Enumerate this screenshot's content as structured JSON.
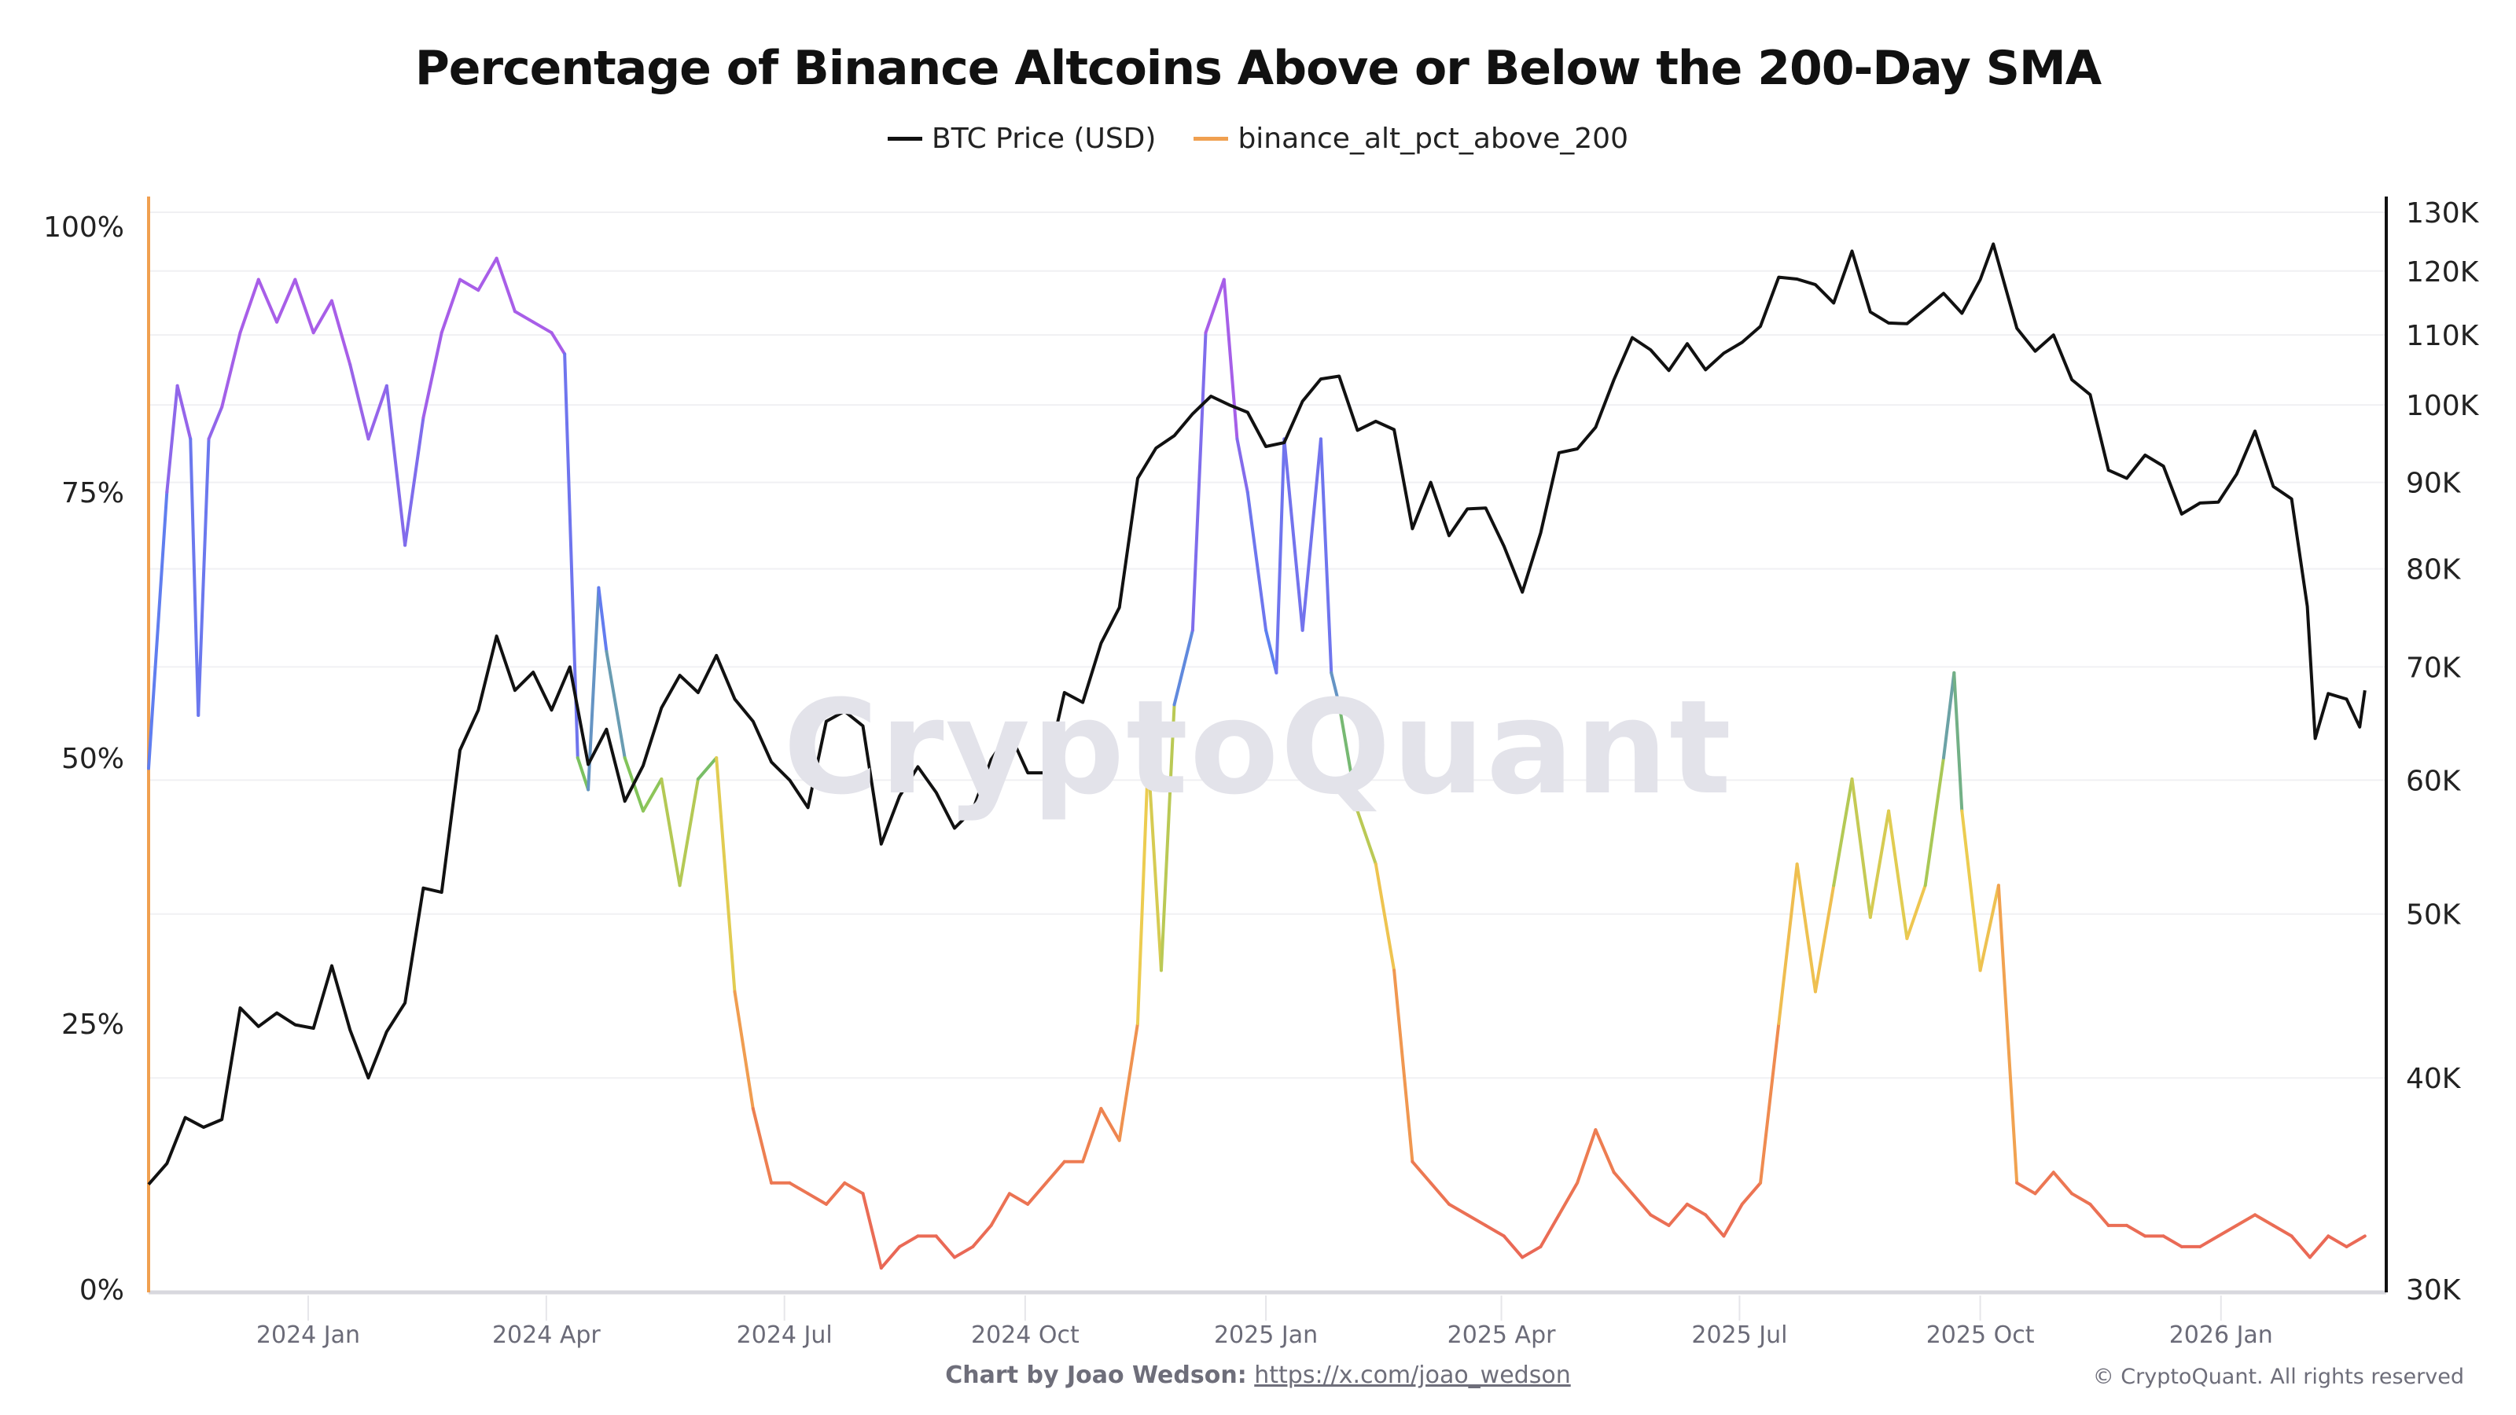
{
  "chart_data": {
    "type": "line",
    "title": "Percentage of Binance Altcoins Above or Below the 200-Day SMA",
    "legend_position": "top-center",
    "grid": true,
    "watermark": "CryptoQuant",
    "x_ticks": [
      {
        "date": "2024-01-01",
        "label": "2024 Jan"
      },
      {
        "date": "2024-04-01",
        "label": "2024 Apr"
      },
      {
        "date": "2024-07-01",
        "label": "2024 Jul"
      },
      {
        "date": "2024-10-01",
        "label": "2024 Oct"
      },
      {
        "date": "2025-01-01",
        "label": "2025 Jan"
      },
      {
        "date": "2025-04-01",
        "label": "2025 Apr"
      },
      {
        "date": "2025-07-01",
        "label": "2025 Jul"
      },
      {
        "date": "2025-10-01",
        "label": "2025 Oct"
      },
      {
        "date": "2026-01-01",
        "label": "2026 Jan"
      }
    ],
    "left_axis": {
      "scale": "linear",
      "range": [
        0,
        100
      ],
      "ticks": [
        {
          "v": 0,
          "label": "0%"
        },
        {
          "v": 25,
          "label": "25%"
        },
        {
          "v": 50,
          "label": "50%"
        },
        {
          "v": 75,
          "label": "75%"
        },
        {
          "v": 100,
          "label": "100%"
        }
      ]
    },
    "right_axis": {
      "scale": "log",
      "range": [
        30000,
        130000
      ],
      "ticks": [
        {
          "v": 30000,
          "label": "30K"
        },
        {
          "v": 40000,
          "label": "40K"
        },
        {
          "v": 50000,
          "label": "50K"
        },
        {
          "v": 60000,
          "label": "60K"
        },
        {
          "v": 70000,
          "label": "70K"
        },
        {
          "v": 80000,
          "label": "80K"
        },
        {
          "v": 90000,
          "label": "90K"
        },
        {
          "v": 100000,
          "label": "100K"
        },
        {
          "v": 110000,
          "label": "110K"
        },
        {
          "v": 120000,
          "label": "120K"
        },
        {
          "v": 130000,
          "label": "130K"
        }
      ]
    },
    "series": [
      {
        "name": "BTC Price (USD)",
        "axis": "right",
        "color": "#111111",
        "points": [
          [
            "2023-11-01",
            34600
          ],
          [
            "2023-11-08",
            35600
          ],
          [
            "2023-11-15",
            37900
          ],
          [
            "2023-11-22",
            37400
          ],
          [
            "2023-11-29",
            37800
          ],
          [
            "2023-12-06",
            44000
          ],
          [
            "2023-12-13",
            42900
          ],
          [
            "2023-12-20",
            43700
          ],
          [
            "2023-12-27",
            43000
          ],
          [
            "2024-01-03",
            42800
          ],
          [
            "2024-01-10",
            46600
          ],
          [
            "2024-01-17",
            42700
          ],
          [
            "2024-01-24",
            40000
          ],
          [
            "2024-01-31",
            42600
          ],
          [
            "2024-02-07",
            44300
          ],
          [
            "2024-02-14",
            51800
          ],
          [
            "2024-02-21",
            51500
          ],
          [
            "2024-02-28",
            62500
          ],
          [
            "2024-03-06",
            66000
          ],
          [
            "2024-03-13",
            73000
          ],
          [
            "2024-03-20",
            67800
          ],
          [
            "2024-03-27",
            69500
          ],
          [
            "2024-04-03",
            66000
          ],
          [
            "2024-04-10",
            70000
          ],
          [
            "2024-04-17",
            61300
          ],
          [
            "2024-04-24",
            64300
          ],
          [
            "2024-05-01",
            58300
          ],
          [
            "2024-05-08",
            61200
          ],
          [
            "2024-05-15",
            66200
          ],
          [
            "2024-05-22",
            69200
          ],
          [
            "2024-05-29",
            67600
          ],
          [
            "2024-06-05",
            71100
          ],
          [
            "2024-06-12",
            67000
          ],
          [
            "2024-06-19",
            65000
          ],
          [
            "2024-06-26",
            61500
          ],
          [
            "2024-07-03",
            60000
          ],
          [
            "2024-07-10",
            57800
          ],
          [
            "2024-07-17",
            65000
          ],
          [
            "2024-07-24",
            65900
          ],
          [
            "2024-07-31",
            64600
          ],
          [
            "2024-08-07",
            55000
          ],
          [
            "2024-08-14",
            58700
          ],
          [
            "2024-08-21",
            61100
          ],
          [
            "2024-08-28",
            59000
          ],
          [
            "2024-09-04",
            56200
          ],
          [
            "2024-09-11",
            57600
          ],
          [
            "2024-09-18",
            61700
          ],
          [
            "2024-09-25",
            64000
          ],
          [
            "2024-10-02",
            60600
          ],
          [
            "2024-10-09",
            60600
          ],
          [
            "2024-10-16",
            67600
          ],
          [
            "2024-10-23",
            66700
          ],
          [
            "2024-10-30",
            72300
          ],
          [
            "2024-11-06",
            75900
          ],
          [
            "2024-11-13",
            90500
          ],
          [
            "2024-11-20",
            94300
          ],
          [
            "2024-11-27",
            95900
          ],
          [
            "2024-12-04",
            98800
          ],
          [
            "2024-12-11",
            101200
          ],
          [
            "2024-12-18",
            100000
          ],
          [
            "2024-12-25",
            99000
          ],
          [
            "2025-01-01",
            94500
          ],
          [
            "2025-01-08",
            95000
          ],
          [
            "2025-01-15",
            100500
          ],
          [
            "2025-01-22",
            103600
          ],
          [
            "2025-01-29",
            104000
          ],
          [
            "2025-02-05",
            96600
          ],
          [
            "2025-02-12",
            97800
          ],
          [
            "2025-02-19",
            96700
          ],
          [
            "2025-02-26",
            84500
          ],
          [
            "2025-03-05",
            90000
          ],
          [
            "2025-03-12",
            83700
          ],
          [
            "2025-03-19",
            86800
          ],
          [
            "2025-03-26",
            86900
          ],
          [
            "2025-04-02",
            82500
          ],
          [
            "2025-04-09",
            77500
          ],
          [
            "2025-04-16",
            84000
          ],
          [
            "2025-04-23",
            93700
          ],
          [
            "2025-04-30",
            94200
          ],
          [
            "2025-05-07",
            97000
          ],
          [
            "2025-05-14",
            103500
          ],
          [
            "2025-05-21",
            109600
          ],
          [
            "2025-05-28",
            107800
          ],
          [
            "2025-06-04",
            104800
          ],
          [
            "2025-06-11",
            108700
          ],
          [
            "2025-06-18",
            104900
          ],
          [
            "2025-06-25",
            107300
          ],
          [
            "2025-07-02",
            108900
          ],
          [
            "2025-07-09",
            111300
          ],
          [
            "2025-07-16",
            119000
          ],
          [
            "2025-07-23",
            118700
          ],
          [
            "2025-07-30",
            117800
          ],
          [
            "2025-08-06",
            114900
          ],
          [
            "2025-08-13",
            123300
          ],
          [
            "2025-08-20",
            113500
          ],
          [
            "2025-08-27",
            111800
          ],
          [
            "2025-09-03",
            111700
          ],
          [
            "2025-09-10",
            114000
          ],
          [
            "2025-09-17",
            116400
          ],
          [
            "2025-09-24",
            113300
          ],
          [
            "2025-10-01",
            118600
          ],
          [
            "2025-10-06",
            124500
          ],
          [
            "2025-10-15",
            111000
          ],
          [
            "2025-10-22",
            107600
          ],
          [
            "2025-10-29",
            110000
          ],
          [
            "2025-11-05",
            103500
          ],
          [
            "2025-11-12",
            101400
          ],
          [
            "2025-11-19",
            91500
          ],
          [
            "2025-11-26",
            90500
          ],
          [
            "2025-12-03",
            93400
          ],
          [
            "2025-12-10",
            92000
          ],
          [
            "2025-12-17",
            86200
          ],
          [
            "2025-12-24",
            87500
          ],
          [
            "2025-12-31",
            87600
          ],
          [
            "2026-01-07",
            91000
          ],
          [
            "2026-01-14",
            96500
          ],
          [
            "2026-01-21",
            89500
          ],
          [
            "2026-01-28",
            88000
          ],
          [
            "2026-02-03",
            76000
          ],
          [
            "2026-02-06",
            63500
          ],
          [
            "2026-02-11",
            67500
          ],
          [
            "2026-02-18",
            67000
          ],
          [
            "2026-02-23",
            64500
          ],
          [
            "2026-02-25",
            67800
          ]
        ]
      },
      {
        "name": "binance_alt_pct_above_200",
        "axis": "left",
        "color": "#f0a050",
        "points": [
          [
            "2023-11-01",
            49
          ],
          [
            "2023-11-08",
            75
          ],
          [
            "2023-11-12",
            85
          ],
          [
            "2023-11-17",
            80
          ],
          [
            "2023-11-20",
            54
          ],
          [
            "2023-11-24",
            80
          ],
          [
            "2023-11-29",
            83
          ],
          [
            "2023-12-06",
            90
          ],
          [
            "2023-12-13",
            95
          ],
          [
            "2023-12-20",
            91
          ],
          [
            "2023-12-27",
            95
          ],
          [
            "2024-01-03",
            90
          ],
          [
            "2024-01-10",
            93
          ],
          [
            "2024-01-17",
            87
          ],
          [
            "2024-01-24",
            80
          ],
          [
            "2024-01-31",
            85
          ],
          [
            "2024-02-07",
            70
          ],
          [
            "2024-02-14",
            82
          ],
          [
            "2024-02-21",
            90
          ],
          [
            "2024-02-28",
            95
          ],
          [
            "2024-03-06",
            94
          ],
          [
            "2024-03-13",
            97
          ],
          [
            "2024-03-20",
            92
          ],
          [
            "2024-03-27",
            91
          ],
          [
            "2024-04-03",
            90
          ],
          [
            "2024-04-08",
            88
          ],
          [
            "2024-04-13",
            50
          ],
          [
            "2024-04-17",
            47
          ],
          [
            "2024-04-21",
            66
          ],
          [
            "2024-04-24",
            60
          ],
          [
            "2024-05-01",
            50
          ],
          [
            "2024-05-08",
            45
          ],
          [
            "2024-05-15",
            48
          ],
          [
            "2024-05-22",
            38
          ],
          [
            "2024-05-29",
            48
          ],
          [
            "2024-06-05",
            50
          ],
          [
            "2024-06-12",
            28
          ],
          [
            "2024-06-19",
            17
          ],
          [
            "2024-06-26",
            10
          ],
          [
            "2024-07-03",
            10
          ],
          [
            "2024-07-10",
            9
          ],
          [
            "2024-07-17",
            8
          ],
          [
            "2024-07-24",
            10
          ],
          [
            "2024-07-31",
            9
          ],
          [
            "2024-08-07",
            2
          ],
          [
            "2024-08-14",
            4
          ],
          [
            "2024-08-21",
            5
          ],
          [
            "2024-08-28",
            5
          ],
          [
            "2024-09-04",
            3
          ],
          [
            "2024-09-11",
            4
          ],
          [
            "2024-09-18",
            6
          ],
          [
            "2024-09-25",
            9
          ],
          [
            "2024-10-02",
            8
          ],
          [
            "2024-10-09",
            10
          ],
          [
            "2024-10-16",
            12
          ],
          [
            "2024-10-23",
            12
          ],
          [
            "2024-10-30",
            17
          ],
          [
            "2024-11-06",
            14
          ],
          [
            "2024-11-13",
            25
          ],
          [
            "2024-11-17",
            50
          ],
          [
            "2024-11-22",
            30
          ],
          [
            "2024-11-27",
            55
          ],
          [
            "2024-12-04",
            62
          ],
          [
            "2024-12-09",
            90
          ],
          [
            "2024-12-16",
            95
          ],
          [
            "2024-12-21",
            80
          ],
          [
            "2024-12-25",
            75
          ],
          [
            "2025-01-01",
            62
          ],
          [
            "2025-01-05",
            58
          ],
          [
            "2025-01-08",
            80
          ],
          [
            "2025-01-15",
            62
          ],
          [
            "2025-01-22",
            80
          ],
          [
            "2025-01-26",
            58
          ],
          [
            "2025-01-29",
            55
          ],
          [
            "2025-02-05",
            45
          ],
          [
            "2025-02-12",
            40
          ],
          [
            "2025-02-19",
            30
          ],
          [
            "2025-02-26",
            12
          ],
          [
            "2025-03-05",
            10
          ],
          [
            "2025-03-12",
            8
          ],
          [
            "2025-03-19",
            7
          ],
          [
            "2025-03-26",
            6
          ],
          [
            "2025-04-02",
            5
          ],
          [
            "2025-04-09",
            3
          ],
          [
            "2025-04-16",
            4
          ],
          [
            "2025-04-23",
            7
          ],
          [
            "2025-04-30",
            10
          ],
          [
            "2025-05-07",
            15
          ],
          [
            "2025-05-14",
            11
          ],
          [
            "2025-05-21",
            9
          ],
          [
            "2025-05-28",
            7
          ],
          [
            "2025-06-04",
            6
          ],
          [
            "2025-06-11",
            8
          ],
          [
            "2025-06-18",
            7
          ],
          [
            "2025-06-25",
            5
          ],
          [
            "2025-07-02",
            8
          ],
          [
            "2025-07-09",
            10
          ],
          [
            "2025-07-16",
            25
          ],
          [
            "2025-07-23",
            40
          ],
          [
            "2025-07-30",
            28
          ],
          [
            "2025-08-06",
            38
          ],
          [
            "2025-08-13",
            48
          ],
          [
            "2025-08-20",
            35
          ],
          [
            "2025-08-27",
            45
          ],
          [
            "2025-09-03",
            33
          ],
          [
            "2025-09-10",
            38
          ],
          [
            "2025-09-17",
            50
          ],
          [
            "2025-09-21",
            58
          ],
          [
            "2025-09-24",
            45
          ],
          [
            "2025-10-01",
            30
          ],
          [
            "2025-10-08",
            38
          ],
          [
            "2025-10-15",
            10
          ],
          [
            "2025-10-22",
            9
          ],
          [
            "2025-10-29",
            11
          ],
          [
            "2025-11-05",
            9
          ],
          [
            "2025-11-12",
            8
          ],
          [
            "2025-11-19",
            6
          ],
          [
            "2025-11-26",
            6
          ],
          [
            "2025-12-03",
            5
          ],
          [
            "2025-12-10",
            5
          ],
          [
            "2025-12-17",
            4
          ],
          [
            "2025-12-24",
            4
          ],
          [
            "2025-12-31",
            5
          ],
          [
            "2026-01-07",
            6
          ],
          [
            "2026-01-14",
            7
          ],
          [
            "2026-01-21",
            6
          ],
          [
            "2026-01-28",
            5
          ],
          [
            "2026-02-04",
            3
          ],
          [
            "2026-02-11",
            5
          ],
          [
            "2026-02-18",
            4
          ],
          [
            "2026-02-25",
            5
          ]
        ]
      }
    ]
  },
  "footer": {
    "credit_label": "Chart by Joao Wedson:",
    "credit_link": "https://x.com/joao_wedson",
    "copyright": "© CryptoQuant. All rights reserved"
  }
}
